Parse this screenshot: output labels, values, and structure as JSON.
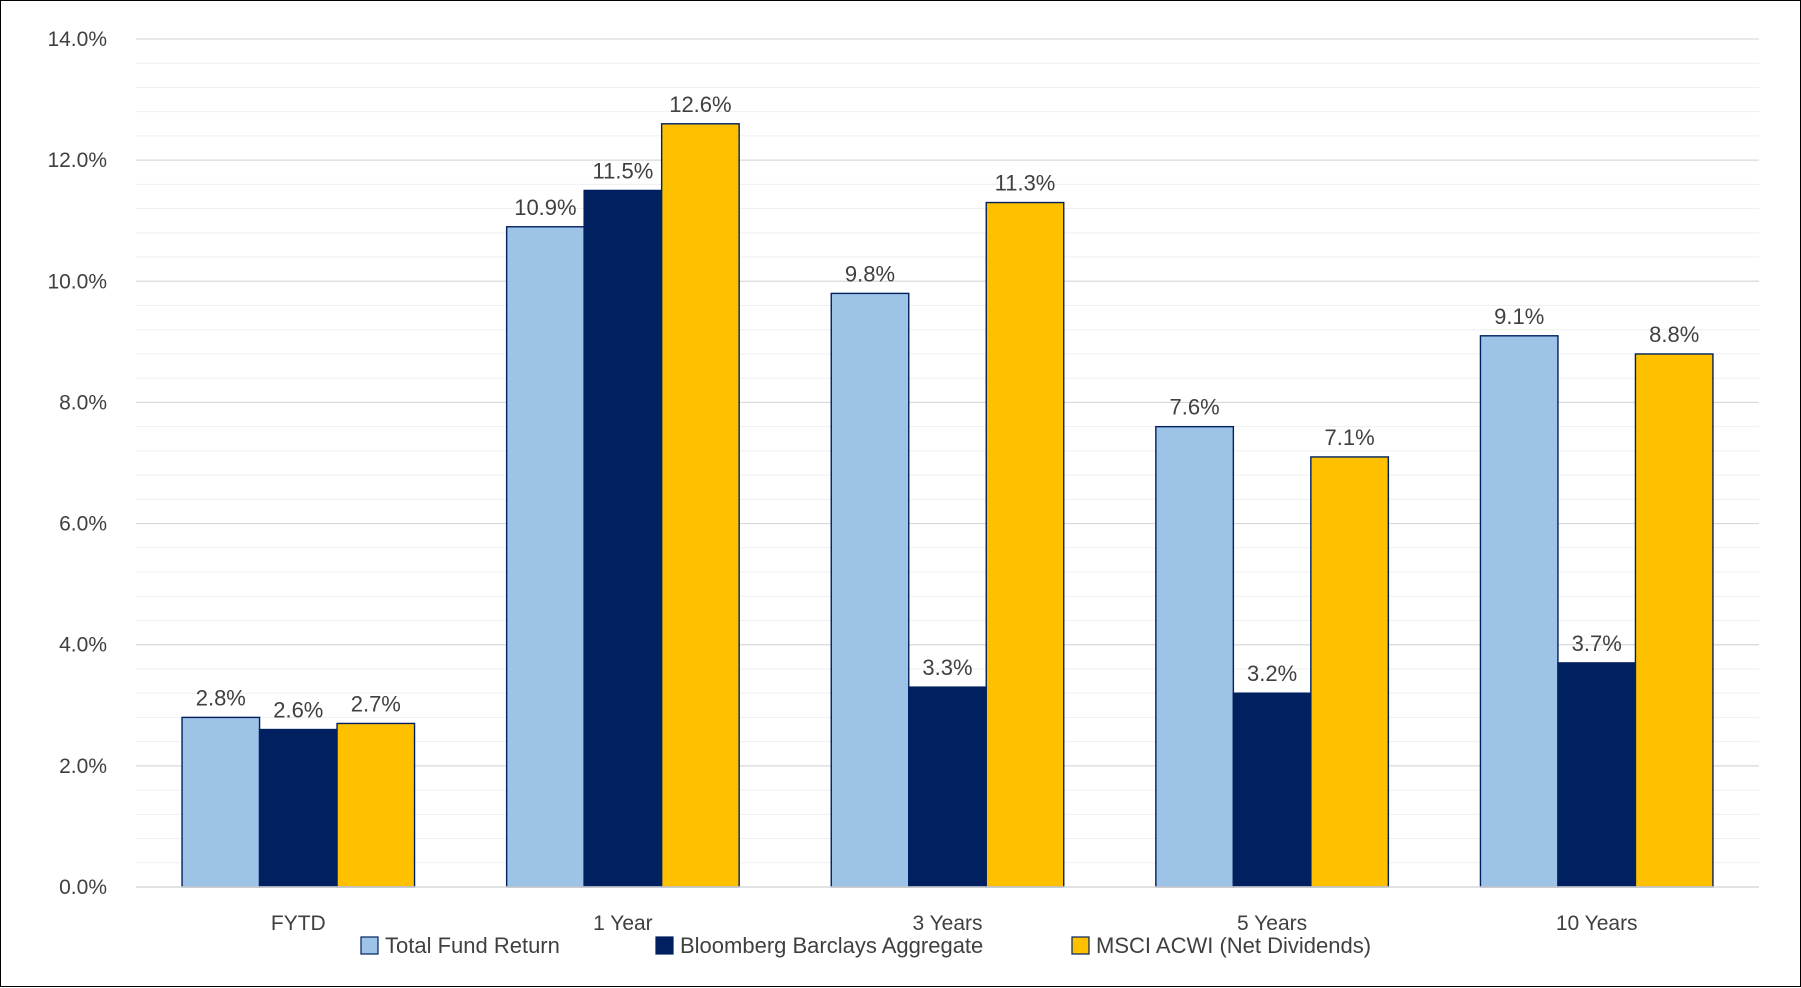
{
  "chart_data": {
    "type": "bar",
    "categories": [
      "FYTD",
      "1 Year",
      "3 Years",
      "5 Years",
      "10 Years"
    ],
    "series": [
      {
        "name": "Total Fund Return",
        "color": "#9dc3e6",
        "values": [
          2.8,
          10.9,
          9.8,
          7.6,
          9.1
        ],
        "labels": [
          "2.8%",
          "10.9%",
          "9.8%",
          "7.6%",
          "9.1%"
        ]
      },
      {
        "name": "Bloomberg Barclays Aggregate",
        "color": "#002060",
        "values": [
          2.6,
          11.5,
          3.3,
          3.2,
          3.7
        ],
        "labels": [
          "2.6%",
          "11.5%",
          "3.3%",
          "3.2%",
          "3.7%"
        ]
      },
      {
        "name": "MSCI ACWI (Net Dividends)",
        "color": "#ffc000",
        "values": [
          2.7,
          12.6,
          11.3,
          7.1,
          8.8
        ],
        "labels": [
          "2.7%",
          "12.6%",
          "11.3%",
          "7.1%",
          "8.8%"
        ]
      }
    ],
    "y_ticks": [
      "0.0%",
      "2.0%",
      "4.0%",
      "6.0%",
      "8.0%",
      "10.0%",
      "12.0%",
      "14.0%"
    ],
    "ylim": [
      0,
      14
    ],
    "ylabel": "",
    "xlabel": "",
    "grid": true,
    "legend_position": "bottom"
  }
}
